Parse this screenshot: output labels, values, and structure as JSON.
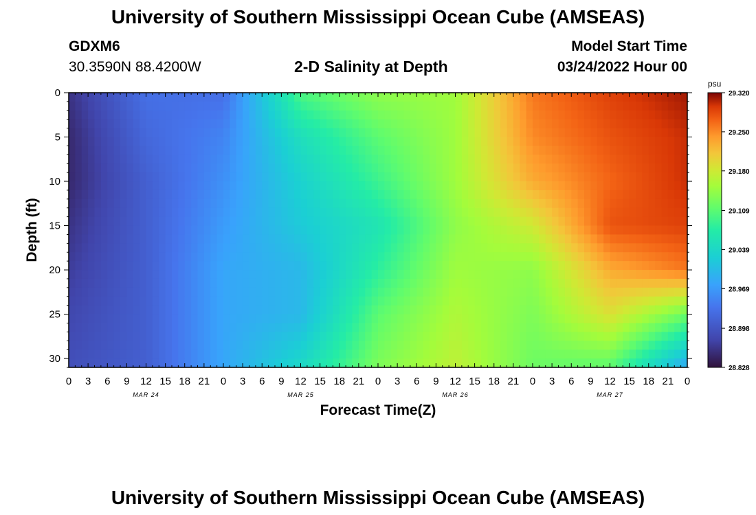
{
  "header": {
    "title": "University of Southern Mississippi Ocean Cube (AMSEAS)",
    "station_id": "GDXM6",
    "station_coords": "30.3590N  88.4200W",
    "plot_title": "2-D Salinity at Depth",
    "model_start_label": "Model Start Time",
    "model_start_value": "03/24/2022 Hour 00"
  },
  "footer": {
    "title": "University of Southern Mississippi Ocean Cube (AMSEAS)"
  },
  "chart_data": {
    "type": "heatmap",
    "xlabel": "Forecast Time(Z)",
    "ylabel": "Depth (ft)",
    "x_hours": [
      0,
      12,
      24,
      36,
      48,
      60,
      72,
      84,
      96
    ],
    "x_ticks": [
      "0",
      "3",
      "6",
      "9",
      "12",
      "15",
      "18",
      "21",
      "0",
      "3",
      "6",
      "9",
      "12",
      "15",
      "18",
      "21",
      "0",
      "3",
      "6",
      "9",
      "12",
      "15",
      "18",
      "21",
      "0",
      "3",
      "6",
      "9",
      "12",
      "15",
      "18",
      "21",
      "0"
    ],
    "date_labels": [
      {
        "label": "MAR 24",
        "hour": 12
      },
      {
        "label": "MAR 25",
        "hour": 36
      },
      {
        "label": "MAR 26",
        "hour": 60
      },
      {
        "label": "MAR 27",
        "hour": 84
      }
    ],
    "y_depths_ft": [
      0,
      5,
      10,
      15,
      20,
      25,
      31
    ],
    "y_ticks": [
      "0",
      "5",
      "10",
      "15",
      "20",
      "25",
      "30"
    ],
    "ylim": [
      0,
      31
    ],
    "xlim": [
      0,
      96
    ],
    "salinity_psu": [
      [
        28.86,
        28.93,
        28.93,
        29.1,
        29.14,
        29.15,
        29.26,
        29.29,
        29.31
      ],
      [
        28.85,
        28.92,
        28.95,
        29.05,
        29.11,
        29.15,
        29.25,
        29.28,
        29.3
      ],
      [
        28.85,
        28.91,
        28.96,
        29.03,
        29.09,
        29.15,
        29.23,
        29.27,
        29.3
      ],
      [
        28.86,
        28.91,
        28.97,
        29.02,
        29.06,
        29.14,
        29.18,
        29.28,
        29.29
      ],
      [
        28.87,
        28.91,
        28.98,
        29.0,
        29.08,
        29.15,
        29.14,
        29.23,
        29.26
      ],
      [
        28.88,
        28.91,
        28.98,
        29.0,
        29.11,
        29.16,
        29.13,
        29.19,
        29.12
      ],
      [
        28.89,
        28.91,
        28.98,
        29.04,
        29.13,
        29.17,
        29.12,
        29.11,
        28.98
      ]
    ],
    "colorbar": {
      "unit": "psu",
      "min": 28.828,
      "max": 29.32,
      "ticks": [
        "29.320",
        "29.250",
        "29.180",
        "29.109",
        "29.039",
        "28.969",
        "28.898",
        "28.828"
      ]
    }
  }
}
